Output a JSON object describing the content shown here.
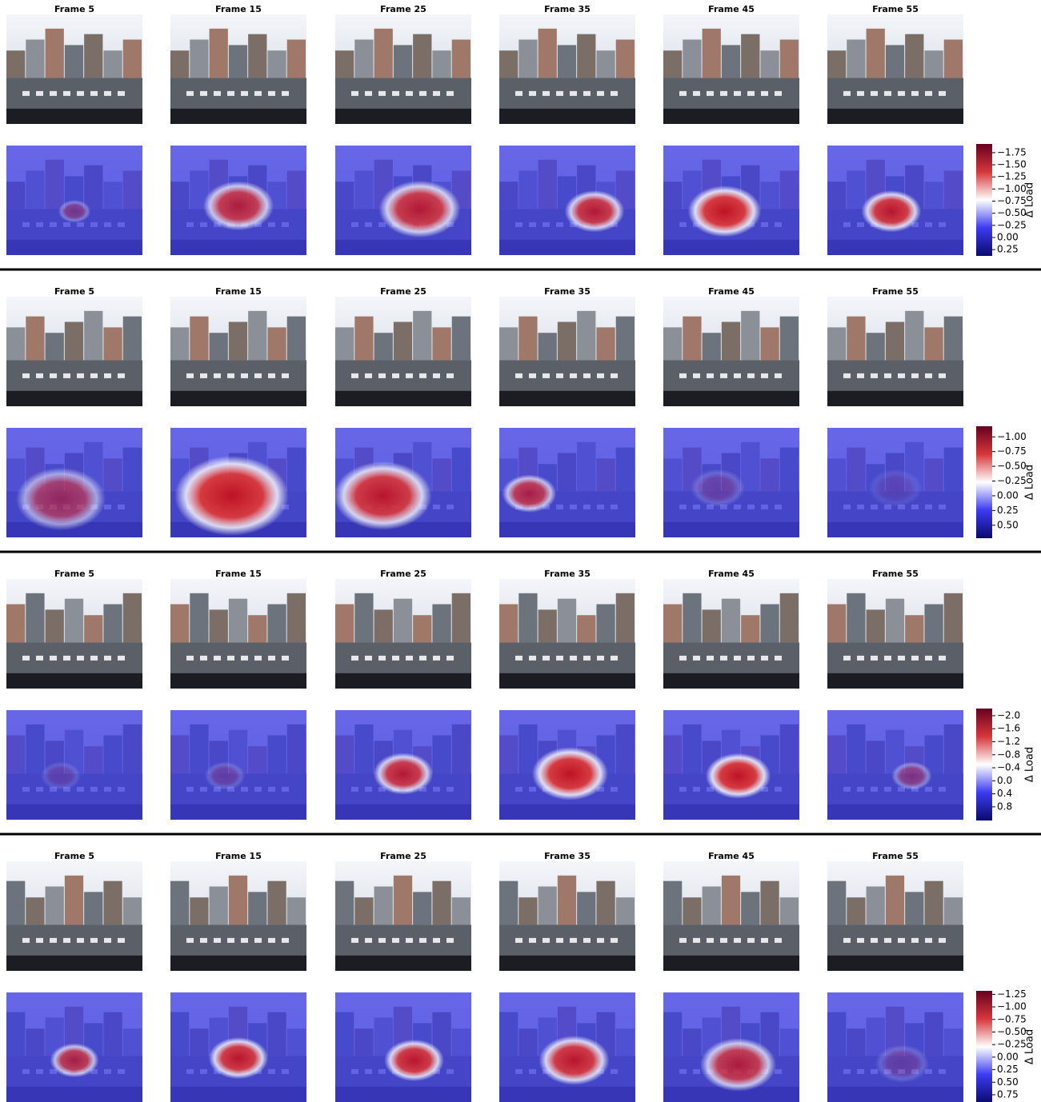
{
  "groups": [
    {
      "frames": [
        "Frame 5",
        "Frame 15",
        "Frame 25",
        "Frame 35",
        "Frame 45",
        "Frame 55"
      ],
      "colorbar": {
        "label": "Δ Load",
        "lim": [
          -1.93,
          0.38
        ],
        "colors": [
          "#67001f",
          "#d6373a",
          "#ffffff",
          "#3b3bf0",
          "#0a0a6e"
        ],
        "ticks": [
          {
            "value": -1.75,
            "label": "−1.75"
          },
          {
            "value": -1.5,
            "label": "−1.50"
          },
          {
            "value": -1.25,
            "label": "−1.25"
          },
          {
            "value": -1,
            "label": "−1.00"
          },
          {
            "value": -0.75,
            "label": "−0.75"
          },
          {
            "value": -0.5,
            "label": "−0.50"
          },
          {
            "value": -0.25,
            "label": "−0.25"
          },
          {
            "value": 0,
            "label": "0.00"
          },
          0.25
        ]
      }
    },
    {
      "frames": [
        "Frame 5",
        "Frame 15",
        "Frame 25",
        "Frame 35",
        "Frame 45",
        "Frame 55"
      ],
      "colorbar": {
        "label": "Δ Load",
        "lim": [
          -1.18,
          0.72
        ],
        "colors": [
          "#67001f",
          "#d6373a",
          "#ffffff",
          "#3b3bf0",
          "#0a0a6e"
        ],
        "ticks": [
          {
            "value": -1,
            "label": "−1.00"
          },
          {
            "value": -0.75,
            "label": "−0.75"
          },
          {
            "value": -0.5,
            "label": "−0.50"
          },
          {
            "value": -0.25,
            "label": "−0.25"
          },
          {
            "value": 0,
            "label": "0.00"
          },
          0.25,
          {
            "value": 0.5,
            "label": "0.50"
          }
        ]
      }
    },
    {
      "frames": [
        "Frame 5",
        "Frame 15",
        "Frame 25",
        "Frame 35",
        "Frame 45",
        "Frame 55"
      ],
      "colorbar": {
        "label": "Δ Load",
        "lim": [
          -2.22,
          1.22
        ],
        "colors": [
          "#67001f",
          "#d6373a",
          "#ffffff",
          "#3b3bf0",
          "#0a0a6e"
        ],
        "ticks": [
          {
            "value": -2,
            "label": "−2.0"
          },
          {
            "value": -1.6,
            "label": "−1.6"
          },
          {
            "value": -1.2,
            "label": "−1.2"
          },
          {
            "value": -0.8,
            "label": "−0.8"
          },
          {
            "value": -0.4,
            "label": "−0.4"
          },
          {
            "value": 0,
            "label": "0.0"
          },
          0.4,
          0.8
        ]
      }
    },
    {
      "frames": [
        "Frame 5",
        "Frame 15",
        "Frame 25",
        "Frame 35",
        "Frame 45",
        "Frame 55"
      ],
      "colorbar": {
        "label": "Δ Load",
        "lim": [
          -1.32,
          0.91
        ],
        "colors": [
          "#67001f",
          "#d6373a",
          "#ffffff",
          "#3b3bf0",
          "#0a0a6e"
        ],
        "ticks": [
          {
            "value": -1.25,
            "label": "−1.25"
          },
          {
            "value": -1,
            "label": "−1.00"
          },
          {
            "value": -0.75,
            "label": "−0.75"
          },
          {
            "value": -0.5,
            "label": "−0.50"
          },
          {
            "value": -0.25,
            "label": "−0.25"
          },
          {
            "value": 0,
            "label": "0.00"
          },
          0.25,
          {
            "value": 0.5,
            "label": "0.50"
          },
          0.75
        ]
      }
    }
  ]
}
